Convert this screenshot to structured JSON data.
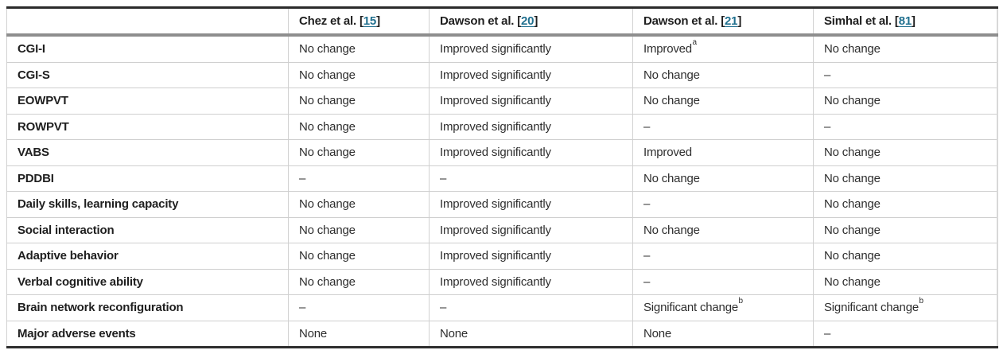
{
  "colors": {
    "link_teal": "#21708f",
    "text_dark": "#1f1f1f",
    "text_body": "#2e2e2e",
    "rule_dark": "#2b2b2b",
    "header_rule_gray": "#8e8e8e",
    "grid_gray": "#d2d2d2",
    "background": "#ffffff"
  },
  "table": {
    "citation_open": "[",
    "citation_close": "]",
    "corner_header": "",
    "columns": [
      {
        "name": "Chez et al.",
        "ref": "15"
      },
      {
        "name": "Dawson et al.",
        "ref": "20"
      },
      {
        "name": "Dawson et al.",
        "ref": "21"
      },
      {
        "name": "Simhal et al.",
        "ref": "81"
      }
    ],
    "rows": [
      {
        "label": "CGI-I",
        "cells": [
          "No change",
          "Improved significantly",
          "Improved^a",
          "No change"
        ]
      },
      {
        "label": "CGI-S",
        "cells": [
          "No change",
          "Improved significantly",
          "No change",
          "–"
        ]
      },
      {
        "label": "EOWPVT",
        "cells": [
          "No change",
          "Improved significantly",
          "No change",
          "No change"
        ]
      },
      {
        "label": "ROWPVT",
        "cells": [
          "No change",
          "Improved significantly",
          "–",
          "–"
        ]
      },
      {
        "label": "VABS",
        "cells": [
          "No change",
          "Improved significantly",
          "Improved",
          "No change"
        ]
      },
      {
        "label": "PDDBI",
        "cells": [
          "–",
          "–",
          "No change",
          "No change"
        ]
      },
      {
        "label": "Daily skills, learning capacity",
        "cells": [
          "No change",
          "Improved significantly",
          "–",
          "No change"
        ]
      },
      {
        "label": "Social interaction",
        "cells": [
          "No change",
          "Improved significantly",
          "No change",
          "No change"
        ]
      },
      {
        "label": "Adaptive behavior",
        "cells": [
          "No change",
          "Improved significantly",
          "–",
          "No change"
        ]
      },
      {
        "label": "Verbal cognitive ability",
        "cells": [
          "No change",
          "Improved significantly",
          "–",
          "No change"
        ]
      },
      {
        "label": "Brain network reconfiguration",
        "cells": [
          "–",
          "–",
          "Significant change^b",
          "Significant change^b"
        ]
      },
      {
        "label": "Major adverse events",
        "cells": [
          "None",
          "None",
          "None",
          "–"
        ]
      }
    ]
  }
}
